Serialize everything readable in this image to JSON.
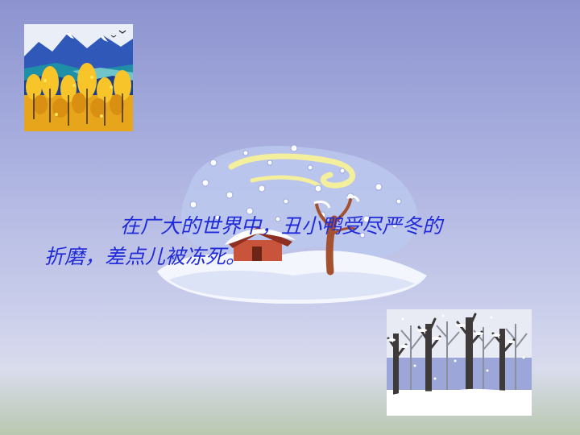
{
  "slide": {
    "caption_line1": "在广大的世界中，丑小鸭受尽严冬的",
    "caption_line2": "折磨，差点儿被冻死。",
    "text_color": "#1f2ad8"
  },
  "images": {
    "top_left": "autumn-mountain-trees-illustration",
    "center": "snowy-landscape-with-house-and-tree-illustration",
    "bottom_right": "snow-covered-forest-illustration"
  }
}
